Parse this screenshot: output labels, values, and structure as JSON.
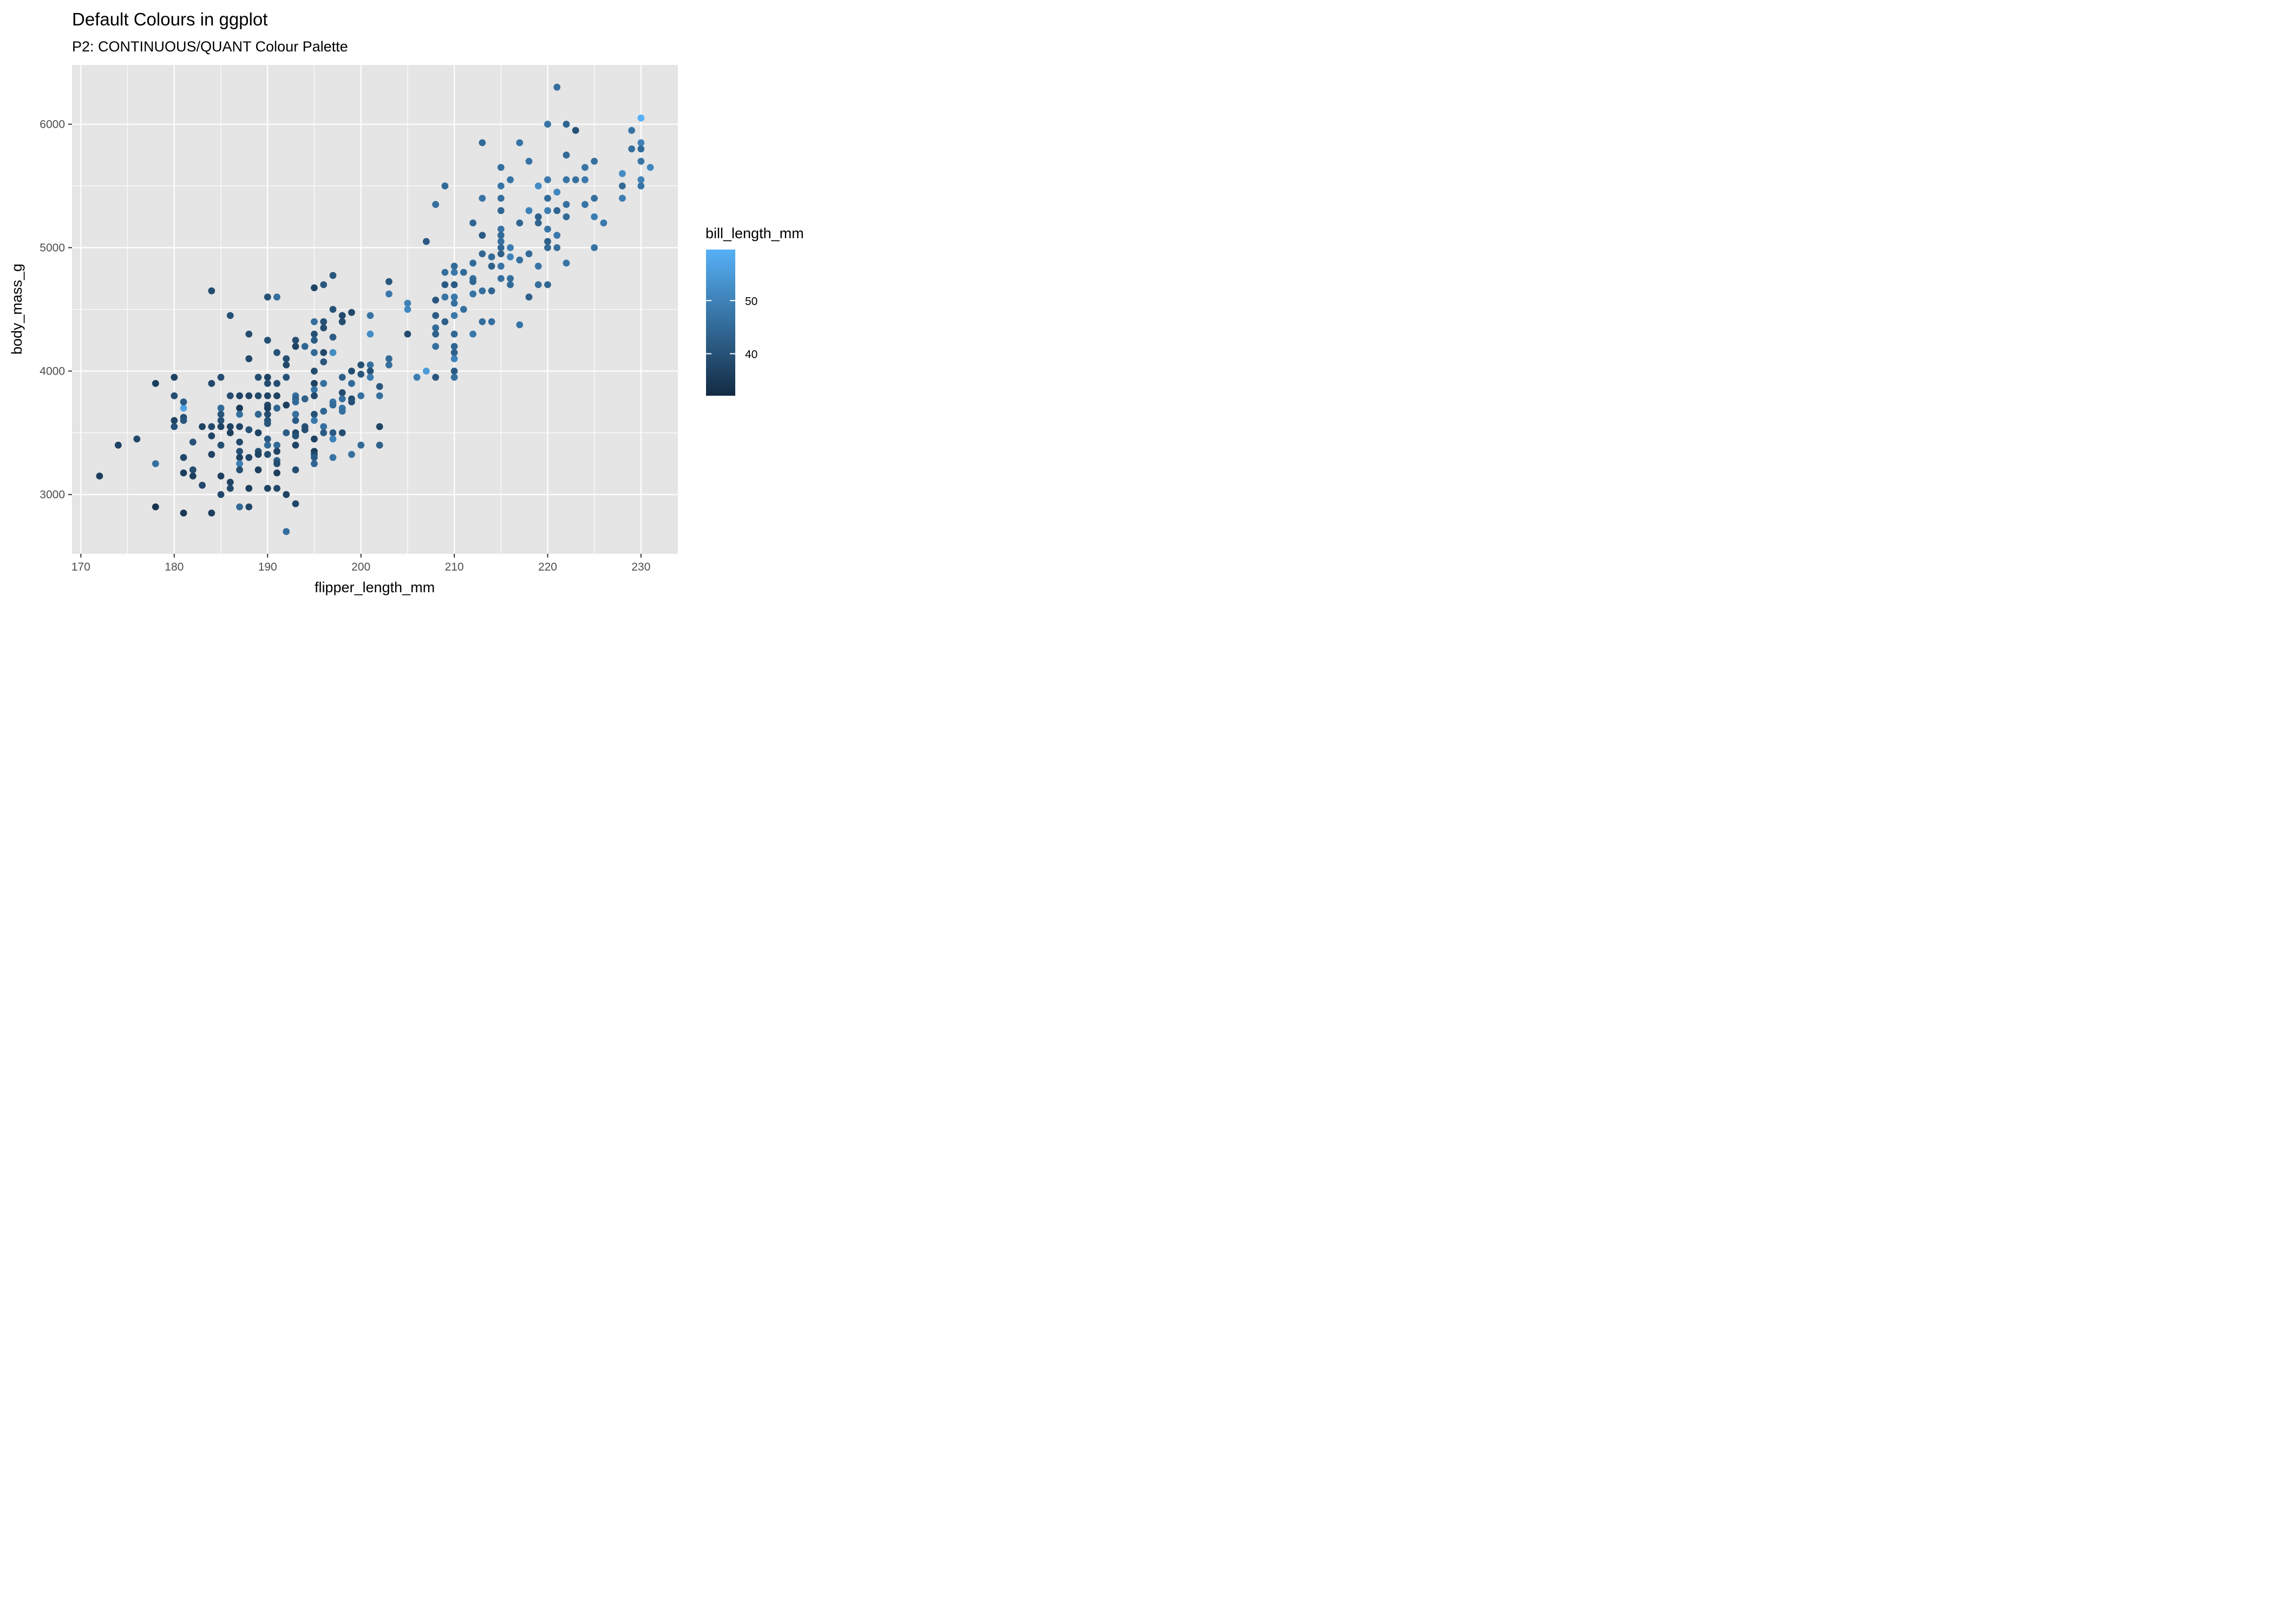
{
  "chart_data": {
    "type": "scatter",
    "title": "Default Colours in ggplot",
    "subtitle": "P2: CONTINUOUS/QUANT Colour Palette",
    "xlabel": "flipper_length_mm",
    "ylabel": "body_mass_g",
    "xlim": [
      169.05,
      233.95
    ],
    "ylim": [
      2520,
      6480
    ],
    "x_ticks": [
      170,
      180,
      190,
      200,
      210,
      220,
      230
    ],
    "x_tick_labels": [
      "170",
      "180",
      "190",
      "200",
      "210",
      "220",
      "230"
    ],
    "y_ticks": [
      3000,
      4000,
      5000,
      6000
    ],
    "y_tick_labels": [
      "3000",
      "4000",
      "5000",
      "6000"
    ],
    "grid": true,
    "panel_background": "#e5e5e5",
    "point_color_low": "#132b43",
    "point_color_high": "#56b1f7",
    "legend": {
      "title": "bill_length_mm",
      "placement": "right",
      "range": [
        32.1,
        59.6
      ],
      "breaks": [
        40,
        50
      ],
      "labels": [
        "40",
        "50"
      ]
    },
    "points": [
      [
        172,
        3150,
        36
      ],
      [
        174,
        3400,
        37
      ],
      [
        176,
        3450,
        38
      ],
      [
        178,
        3900,
        36
      ],
      [
        178,
        2900,
        34
      ],
      [
        178,
        3250,
        46
      ],
      [
        180,
        3950,
        37
      ],
      [
        180,
        3800,
        39
      ],
      [
        180,
        3600,
        37
      ],
      [
        180,
        3550,
        40
      ],
      [
        181,
        3700,
        57
      ],
      [
        181,
        3750,
        42
      ],
      [
        181,
        3625,
        39
      ],
      [
        181,
        3600,
        41
      ],
      [
        181,
        3300,
        38
      ],
      [
        181,
        3175,
        36
      ],
      [
        181,
        2850,
        35
      ],
      [
        182,
        3425,
        40
      ],
      [
        182,
        3200,
        39
      ],
      [
        182,
        3150,
        36
      ],
      [
        183,
        3550,
        37
      ],
      [
        183,
        3075,
        38
      ],
      [
        184,
        4650,
        39
      ],
      [
        184,
        3900,
        38
      ],
      [
        184,
        3550,
        38
      ],
      [
        184,
        3475,
        37
      ],
      [
        184,
        3325,
        37
      ],
      [
        184,
        2850,
        36
      ],
      [
        185,
        3950,
        39
      ],
      [
        185,
        3700,
        45
      ],
      [
        185,
        3650,
        41
      ],
      [
        185,
        3600,
        40
      ],
      [
        185,
        3550,
        37
      ],
      [
        185,
        3400,
        39
      ],
      [
        185,
        3150,
        36
      ],
      [
        185,
        3000,
        38
      ],
      [
        186,
        4450,
        40
      ],
      [
        186,
        3800,
        39
      ],
      [
        186,
        3550,
        37
      ],
      [
        186,
        3500,
        36
      ],
      [
        186,
        3100,
        37
      ],
      [
        186,
        3050,
        38
      ],
      [
        187,
        3800,
        37
      ],
      [
        187,
        3700,
        35
      ],
      [
        187,
        3650,
        46
      ],
      [
        187,
        3550,
        37
      ],
      [
        187,
        3425,
        38
      ],
      [
        187,
        3350,
        40
      ],
      [
        187,
        3300,
        37
      ],
      [
        187,
        3250,
        49
      ],
      [
        187,
        3200,
        39
      ],
      [
        187,
        2900,
        45
      ],
      [
        188,
        4300,
        39
      ],
      [
        188,
        4100,
        38
      ],
      [
        188,
        3800,
        37
      ],
      [
        188,
        3525,
        40
      ],
      [
        188,
        3300,
        38
      ],
      [
        188,
        3050,
        36
      ],
      [
        188,
        2900,
        38
      ],
      [
        189,
        3950,
        39
      ],
      [
        189,
        3800,
        38
      ],
      [
        189,
        3650,
        44
      ],
      [
        189,
        3500,
        37
      ],
      [
        189,
        3350,
        40
      ],
      [
        189,
        3325,
        37
      ],
      [
        189,
        3200,
        36
      ],
      [
        190,
        4600,
        40
      ],
      [
        190,
        4250,
        40
      ],
      [
        190,
        3950,
        37
      ],
      [
        190,
        3900,
        39
      ],
      [
        190,
        3800,
        37
      ],
      [
        190,
        3725,
        38
      ],
      [
        190,
        3700,
        36
      ],
      [
        190,
        3650,
        39
      ],
      [
        190,
        3600,
        40
      ],
      [
        190,
        3575,
        41
      ],
      [
        190,
        3450,
        42
      ],
      [
        190,
        3400,
        45
      ],
      [
        190,
        3325,
        39
      ],
      [
        190,
        3050,
        37
      ],
      [
        191,
        4600,
        46
      ],
      [
        191,
        4150,
        40
      ],
      [
        191,
        3900,
        39
      ],
      [
        191,
        3800,
        37
      ],
      [
        191,
        3700,
        44
      ],
      [
        191,
        3400,
        45
      ],
      [
        191,
        3350,
        37
      ],
      [
        191,
        3275,
        42
      ],
      [
        191,
        3250,
        39
      ],
      [
        191,
        3175,
        36
      ],
      [
        191,
        3050,
        38
      ],
      [
        192,
        4100,
        39
      ],
      [
        192,
        4050,
        38
      ],
      [
        192,
        3950,
        40
      ],
      [
        192,
        3725,
        36
      ],
      [
        192,
        3500,
        42
      ],
      [
        192,
        3000,
        37
      ],
      [
        192,
        2700,
        46
      ],
      [
        193,
        4250,
        39
      ],
      [
        193,
        4200,
        37
      ],
      [
        193,
        3800,
        46
      ],
      [
        193,
        3775,
        43
      ],
      [
        193,
        3750,
        45
      ],
      [
        193,
        3650,
        46
      ],
      [
        193,
        3600,
        42
      ],
      [
        193,
        3500,
        38
      ],
      [
        193,
        3475,
        40
      ],
      [
        193,
        3400,
        37
      ],
      [
        193,
        3200,
        39
      ],
      [
        193,
        2925,
        38
      ],
      [
        194,
        4200,
        44
      ],
      [
        194,
        3775,
        43
      ],
      [
        194,
        3550,
        40
      ],
      [
        194,
        3525,
        39
      ],
      [
        195,
        4675,
        37
      ],
      [
        195,
        4400,
        46
      ],
      [
        195,
        4300,
        40
      ],
      [
        195,
        4250,
        42
      ],
      [
        195,
        4150,
        45
      ],
      [
        195,
        4000,
        39
      ],
      [
        195,
        3900,
        37
      ],
      [
        195,
        3850,
        47
      ],
      [
        195,
        3800,
        38
      ],
      [
        195,
        3650,
        40
      ],
      [
        195,
        3600,
        48
      ],
      [
        195,
        3450,
        37
      ],
      [
        195,
        3350,
        36
      ],
      [
        195,
        3325,
        38
      ],
      [
        195,
        3300,
        42
      ],
      [
        195,
        3250,
        44
      ],
      [
        196,
        4700,
        41
      ],
      [
        196,
        4400,
        40
      ],
      [
        196,
        4350,
        39
      ],
      [
        196,
        4150,
        38
      ],
      [
        196,
        4075,
        41
      ],
      [
        196,
        3900,
        46
      ],
      [
        196,
        3675,
        44
      ],
      [
        196,
        3550,
        46
      ],
      [
        196,
        3500,
        42
      ],
      [
        197,
        4775,
        41
      ],
      [
        197,
        4500,
        40
      ],
      [
        197,
        4275,
        42
      ],
      [
        197,
        4150,
        52
      ],
      [
        197,
        3750,
        47
      ],
      [
        197,
        3725,
        45
      ],
      [
        197,
        3500,
        42
      ],
      [
        197,
        3450,
        50
      ],
      [
        197,
        3300,
        47
      ],
      [
        198,
        4450,
        38
      ],
      [
        198,
        4400,
        38
      ],
      [
        198,
        4400,
        39
      ],
      [
        198,
        3950,
        43
      ],
      [
        198,
        3825,
        39
      ],
      [
        198,
        3775,
        46
      ],
      [
        198,
        3700,
        47
      ],
      [
        198,
        3675,
        46
      ],
      [
        198,
        3500,
        39
      ],
      [
        199,
        4475,
        38
      ],
      [
        199,
        4000,
        39
      ],
      [
        199,
        3900,
        45
      ],
      [
        199,
        3775,
        39
      ],
      [
        199,
        3750,
        40
      ],
      [
        199,
        3325,
        46
      ],
      [
        200,
        4050,
        40
      ],
      [
        200,
        3975,
        41
      ],
      [
        200,
        3800,
        46
      ],
      [
        200,
        3400,
        45
      ],
      [
        201,
        4450,
        47
      ],
      [
        201,
        4300,
        52
      ],
      [
        201,
        4050,
        46
      ],
      [
        201,
        4000,
        40
      ],
      [
        201,
        3950,
        49
      ],
      [
        202,
        3875,
        41
      ],
      [
        202,
        3800,
        46
      ],
      [
        202,
        3550,
        37
      ],
      [
        202,
        3400,
        43
      ],
      [
        203,
        4725,
        41
      ],
      [
        203,
        4625,
        48
      ],
      [
        203,
        4100,
        45
      ],
      [
        203,
        4050,
        46
      ],
      [
        205,
        4550,
        50
      ],
      [
        205,
        4500,
        51
      ],
      [
        205,
        4300,
        39
      ],
      [
        206,
        3950,
        49
      ],
      [
        207,
        5050,
        42
      ],
      [
        207,
        4000,
        55
      ],
      [
        208,
        5350,
        46
      ],
      [
        208,
        4575,
        41
      ],
      [
        208,
        4450,
        42
      ],
      [
        208,
        4350,
        45
      ],
      [
        208,
        4300,
        43
      ],
      [
        208,
        4200,
        46
      ],
      [
        208,
        3950,
        41
      ],
      [
        209,
        5500,
        45
      ],
      [
        209,
        4800,
        46
      ],
      [
        209,
        4700,
        42
      ],
      [
        209,
        4600,
        47
      ],
      [
        209,
        4400,
        43
      ],
      [
        210,
        4850,
        45
      ],
      [
        210,
        4800,
        48
      ],
      [
        210,
        4700,
        42
      ],
      [
        210,
        4600,
        48
      ],
      [
        210,
        4550,
        46
      ],
      [
        210,
        4450,
        48
      ],
      [
        210,
        4300,
        45
      ],
      [
        210,
        4200,
        44
      ],
      [
        210,
        4150,
        43
      ],
      [
        210,
        4100,
        50
      ],
      [
        210,
        4000,
        42
      ],
      [
        210,
        3950,
        46
      ],
      [
        211,
        4800,
        45
      ],
      [
        211,
        4500,
        46
      ],
      [
        212,
        5200,
        44
      ],
      [
        212,
        4875,
        45
      ],
      [
        212,
        4750,
        46
      ],
      [
        212,
        4725,
        44
      ],
      [
        212,
        4625,
        47
      ],
      [
        212,
        4300,
        48
      ],
      [
        213,
        5850,
        45
      ],
      [
        213,
        5400,
        47
      ],
      [
        213,
        5100,
        42
      ],
      [
        213,
        4950,
        44
      ],
      [
        213,
        4650,
        46
      ],
      [
        213,
        4400,
        46
      ],
      [
        214,
        4925,
        45
      ],
      [
        214,
        4850,
        43
      ],
      [
        214,
        4650,
        44
      ],
      [
        214,
        4400,
        46
      ],
      [
        215,
        5650,
        46
      ],
      [
        215,
        5500,
        47
      ],
      [
        215,
        5400,
        46
      ],
      [
        215,
        5300,
        44
      ],
      [
        215,
        5150,
        47
      ],
      [
        215,
        5100,
        45
      ],
      [
        215,
        5050,
        46
      ],
      [
        215,
        5000,
        44
      ],
      [
        215,
        4950,
        43
      ],
      [
        215,
        4850,
        47
      ],
      [
        215,
        4750,
        46
      ],
      [
        216,
        5550,
        47
      ],
      [
        216,
        5000,
        49
      ],
      [
        216,
        4925,
        50
      ],
      [
        216,
        4750,
        46
      ],
      [
        216,
        4700,
        45
      ],
      [
        217,
        5850,
        47
      ],
      [
        217,
        5200,
        44
      ],
      [
        217,
        4900,
        46
      ],
      [
        217,
        4375,
        47
      ],
      [
        218,
        5700,
        47
      ],
      [
        218,
        5300,
        50
      ],
      [
        218,
        4950,
        45
      ],
      [
        218,
        4600,
        43
      ],
      [
        219,
        5500,
        52
      ],
      [
        219,
        5250,
        43
      ],
      [
        219,
        5200,
        44
      ],
      [
        219,
        4850,
        47
      ],
      [
        219,
        4700,
        46
      ],
      [
        220,
        6000,
        47
      ],
      [
        220,
        5550,
        48
      ],
      [
        220,
        5400,
        45
      ],
      [
        220,
        5300,
        49
      ],
      [
        220,
        5150,
        47
      ],
      [
        220,
        5050,
        43
      ],
      [
        220,
        5000,
        45
      ],
      [
        220,
        4700,
        44
      ],
      [
        221,
        6300,
        46
      ],
      [
        221,
        5450,
        51
      ],
      [
        221,
        5300,
        44
      ],
      [
        221,
        5100,
        48
      ],
      [
        221,
        5000,
        46
      ],
      [
        222,
        6000,
        44
      ],
      [
        222,
        5750,
        45
      ],
      [
        222,
        5550,
        47
      ],
      [
        222,
        5350,
        46
      ],
      [
        222,
        5250,
        45
      ],
      [
        222,
        4875,
        47
      ],
      [
        223,
        5950,
        40
      ],
      [
        223,
        5550,
        46
      ],
      [
        224,
        5650,
        47
      ],
      [
        224,
        5550,
        48
      ],
      [
        224,
        5350,
        47
      ],
      [
        225,
        5700,
        46
      ],
      [
        225,
        5400,
        46
      ],
      [
        225,
        5250,
        49
      ],
      [
        225,
        5000,
        47
      ],
      [
        226,
        5200,
        48
      ],
      [
        228,
        5600,
        52
      ],
      [
        228,
        5500,
        45
      ],
      [
        228,
        5400,
        49
      ],
      [
        229,
        5950,
        47
      ],
      [
        229,
        5800,
        46
      ],
      [
        230,
        6050,
        59.6
      ],
      [
        230,
        5850,
        50
      ],
      [
        230,
        5800,
        45
      ],
      [
        230,
        5700,
        47
      ],
      [
        230,
        5550,
        50
      ],
      [
        230,
        5500,
        47
      ],
      [
        231,
        5650,
        51
      ]
    ]
  }
}
